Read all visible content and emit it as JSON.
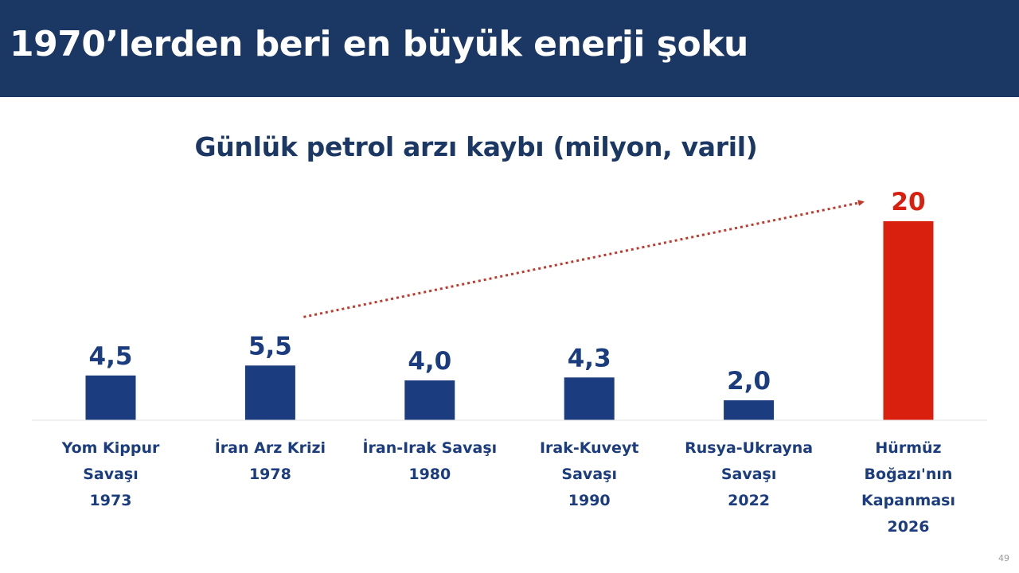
{
  "header": {
    "title": "1970’lerden beri en büyük enerji şoku"
  },
  "page_number": "49",
  "colors": {
    "header_bg": "#1b3763",
    "bar_default": "#1b3c7e",
    "bar_highlight": "#d9200f",
    "arrow": "#c0392b"
  },
  "chart_data": {
    "type": "bar",
    "title": "Günlük petrol arzı kaybı (milyon, varil)",
    "categories": [
      [
        "Yom Kippur",
        "Savaşı",
        "1973"
      ],
      [
        "İran Arz Krizi",
        "1978"
      ],
      [
        "İran-Irak Savaşı",
        "1980"
      ],
      [
        "Irak-Kuveyt",
        "Savaşı",
        "1990"
      ],
      [
        "Rusya-Ukrayna",
        "Savaşı",
        "2022"
      ],
      [
        "Hürmüz",
        "Boğazı'nın",
        "Kapanması",
        "2026"
      ]
    ],
    "values": [
      4.5,
      5.5,
      4.0,
      4.3,
      2.0,
      20
    ],
    "value_labels": [
      "4,5",
      "5,5",
      "4,0",
      "4,3",
      "2,0",
      "20"
    ],
    "highlight_index": 5,
    "ylim": [
      0,
      20
    ],
    "xlabel": "",
    "ylabel": "",
    "grid": false,
    "legend": "none",
    "annotation": "dotted arrow from the 1978 bar to the 2026 bar"
  }
}
